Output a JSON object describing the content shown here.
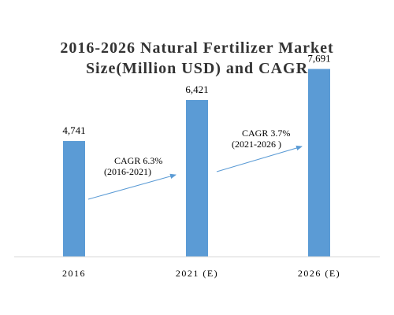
{
  "chart_data": {
    "type": "bar",
    "title_line1": "2016-2026 Natural Fertilizer Market",
    "title_line2": "Size(Million USD) and CAGR",
    "categories": [
      "2016",
      "2021 (E)",
      "2026 (E)"
    ],
    "values": [
      4741,
      6421,
      7691
    ],
    "value_labels": [
      "4,741",
      "6,421",
      "7,691"
    ],
    "ylim": [
      0,
      8000
    ],
    "grid": false,
    "legend": "none",
    "bar_color": "#5b9bd5",
    "annotations": [
      {
        "from_category": 0,
        "to_category": 1,
        "label": "CAGR 6.3%",
        "period": "(2016-2021)"
      },
      {
        "from_category": 1,
        "to_category": 2,
        "label": "CAGR 3.7%",
        "period": "(2021-2026 )"
      }
    ]
  }
}
